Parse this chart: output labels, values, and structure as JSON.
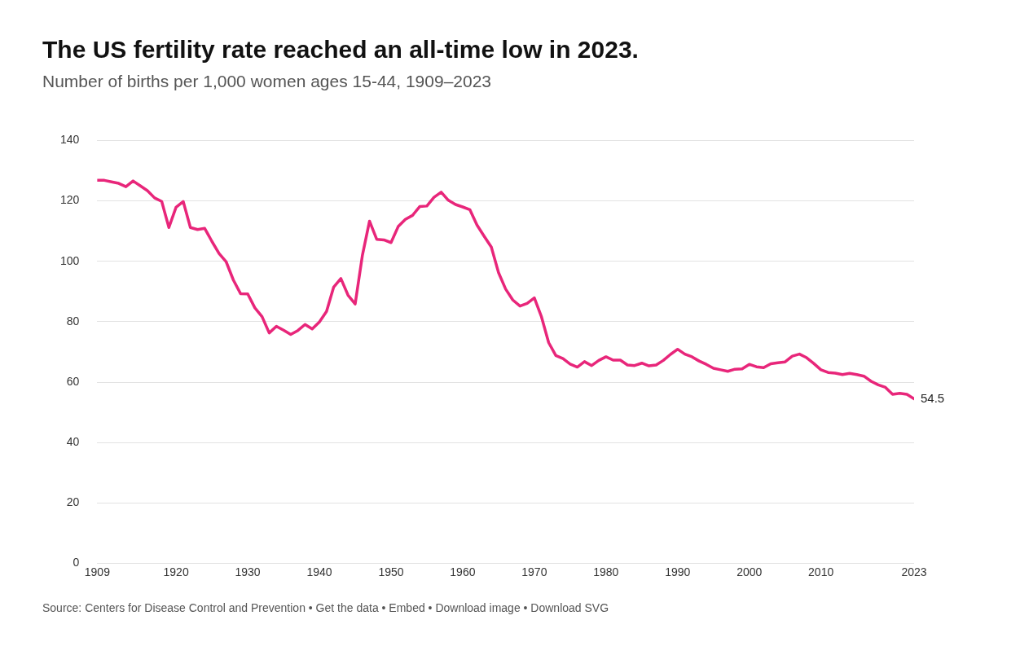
{
  "chart_data": {
    "type": "line",
    "title": "The US fertility rate reached an all-time low in 2023.",
    "subtitle": "Number of births per 1,000 women ages 15-44, 1909–2023",
    "x": [
      1909,
      1910,
      1911,
      1912,
      1913,
      1914,
      1915,
      1916,
      1917,
      1918,
      1919,
      1920,
      1921,
      1922,
      1923,
      1924,
      1925,
      1926,
      1927,
      1928,
      1929,
      1930,
      1931,
      1932,
      1933,
      1934,
      1935,
      1936,
      1937,
      1938,
      1939,
      1940,
      1941,
      1942,
      1943,
      1944,
      1945,
      1946,
      1947,
      1948,
      1949,
      1950,
      1951,
      1952,
      1953,
      1954,
      1955,
      1956,
      1957,
      1958,
      1959,
      1960,
      1961,
      1962,
      1963,
      1964,
      1965,
      1966,
      1967,
      1968,
      1969,
      1970,
      1971,
      1972,
      1973,
      1974,
      1975,
      1976,
      1977,
      1978,
      1979,
      1980,
      1981,
      1982,
      1983,
      1984,
      1985,
      1986,
      1987,
      1988,
      1989,
      1990,
      1991,
      1992,
      1993,
      1994,
      1995,
      1996,
      1997,
      1998,
      1999,
      2000,
      2001,
      2002,
      2003,
      2004,
      2005,
      2006,
      2007,
      2008,
      2009,
      2010,
      2011,
      2012,
      2013,
      2014,
      2015,
      2016,
      2017,
      2018,
      2019,
      2020,
      2021,
      2022,
      2023
    ],
    "series": [
      {
        "color": "#e8267a",
        "values": [
          126.8,
          126.8,
          126.3,
          125.8,
          124.7,
          126.6,
          125.0,
          123.4,
          121.0,
          119.8,
          111.2,
          117.9,
          119.8,
          111.2,
          110.5,
          110.9,
          106.6,
          102.6,
          99.8,
          93.8,
          89.3,
          89.2,
          84.6,
          81.7,
          76.3,
          78.5,
          77.2,
          75.8,
          77.1,
          79.1,
          77.6,
          79.9,
          83.4,
          91.5,
          94.3,
          88.8,
          85.9,
          101.9,
          113.3,
          107.3,
          107.1,
          106.2,
          111.5,
          113.9,
          115.2,
          118.1,
          118.3,
          121.2,
          122.9,
          120.2,
          118.8,
          118.0,
          117.1,
          112.0,
          108.3,
          104.7,
          96.3,
          90.8,
          87.2,
          85.2,
          86.1,
          87.9,
          81.6,
          73.1,
          68.8,
          67.8,
          66.0,
          65.0,
          66.8,
          65.5,
          67.2,
          68.4,
          67.3,
          67.3,
          65.7,
          65.5,
          66.3,
          65.4,
          65.7,
          67.2,
          69.2,
          70.9,
          69.3,
          68.4,
          67.0,
          65.9,
          64.6,
          64.1,
          63.6,
          64.3,
          64.4,
          65.9,
          65.1,
          64.8,
          66.1,
          66.4,
          66.7,
          68.6,
          69.3,
          68.1,
          66.2,
          64.1,
          63.2,
          63.0,
          62.5,
          62.9,
          62.5,
          62.0,
          60.3,
          59.1,
          58.3,
          56.0,
          56.3,
          56.0,
          54.5
        ]
      }
    ],
    "xlim": [
      1909,
      2023
    ],
    "xticks": [
      1909,
      1920,
      1930,
      1940,
      1950,
      1960,
      1970,
      1980,
      1990,
      2000,
      2010,
      2023
    ],
    "ylim": [
      0,
      140
    ],
    "yticks": [
      0,
      20,
      40,
      60,
      80,
      100,
      120,
      140
    ],
    "grid": "y",
    "legend": false,
    "marker": "none",
    "line_style": "solid",
    "annotations": [
      {
        "text": "54.5",
        "x": 2023,
        "y": 54.5
      },
      "Source: Centers for Disease Control and Prevention • Get the data • Embed • Download image • Download SVG"
    ]
  }
}
